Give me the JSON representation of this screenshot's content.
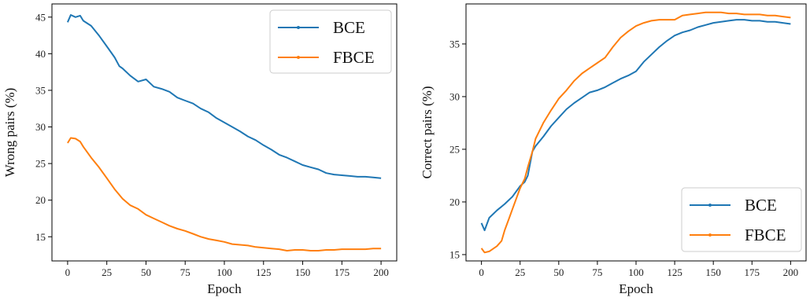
{
  "chart_data": [
    {
      "type": "line",
      "title": "",
      "xlabel": "Epoch",
      "ylabel": "Wrong pairs (%)",
      "xlim": [
        -10,
        210
      ],
      "ylim": [
        11.7,
        46.8
      ],
      "xticks": [
        0,
        25,
        50,
        75,
        100,
        125,
        150,
        175,
        200
      ],
      "yticks": [
        15,
        20,
        25,
        30,
        35,
        40,
        45
      ],
      "legend_position": "top-right",
      "grid": false,
      "series": [
        {
          "name": "BCE",
          "color": "#1f77b4",
          "x": [
            0,
            2,
            5,
            8,
            10,
            15,
            20,
            25,
            30,
            33,
            35,
            40,
            45,
            50,
            55,
            60,
            65,
            70,
            75,
            80,
            85,
            90,
            95,
            100,
            105,
            110,
            115,
            120,
            125,
            130,
            135,
            140,
            145,
            150,
            155,
            160,
            165,
            170,
            175,
            180,
            185,
            190,
            195,
            200
          ],
          "values": [
            44.3,
            45.3,
            45.0,
            45.2,
            44.5,
            43.8,
            42.5,
            41.0,
            39.5,
            38.3,
            38.0,
            37.0,
            36.2,
            36.5,
            35.5,
            35.2,
            34.8,
            34.0,
            33.6,
            33.2,
            32.5,
            32.0,
            31.2,
            30.6,
            30.0,
            29.4,
            28.7,
            28.2,
            27.5,
            26.9,
            26.2,
            25.8,
            25.3,
            24.8,
            24.5,
            24.2,
            23.7,
            23.5,
            23.4,
            23.3,
            23.2,
            23.2,
            23.1,
            23.0
          ]
        },
        {
          "name": "FBCE",
          "color": "#ff7f0e",
          "x": [
            0,
            2,
            5,
            8,
            10,
            15,
            20,
            25,
            30,
            35,
            40,
            45,
            50,
            55,
            60,
            65,
            70,
            75,
            80,
            85,
            90,
            95,
            100,
            105,
            110,
            115,
            120,
            125,
            130,
            135,
            140,
            145,
            150,
            155,
            160,
            165,
            170,
            175,
            180,
            185,
            190,
            195,
            200
          ],
          "values": [
            27.8,
            28.5,
            28.4,
            28.0,
            27.3,
            25.8,
            24.5,
            23.0,
            21.5,
            20.2,
            19.3,
            18.8,
            18.0,
            17.5,
            17.0,
            16.5,
            16.1,
            15.8,
            15.4,
            15.0,
            14.7,
            14.5,
            14.3,
            14.0,
            13.9,
            13.8,
            13.6,
            13.5,
            13.4,
            13.3,
            13.1,
            13.2,
            13.2,
            13.1,
            13.1,
            13.2,
            13.2,
            13.3,
            13.3,
            13.3,
            13.3,
            13.4,
            13.4
          ]
        }
      ]
    },
    {
      "type": "line",
      "title": "",
      "xlabel": "Epoch",
      "ylabel": "Correct pairs (%)",
      "xlim": [
        -10,
        210
      ],
      "ylim": [
        14.4,
        38.8
      ],
      "xticks": [
        0,
        25,
        50,
        75,
        100,
        125,
        150,
        175,
        200
      ],
      "yticks": [
        15,
        20,
        25,
        30,
        35
      ],
      "legend_position": "bottom-right",
      "grid": false,
      "series": [
        {
          "name": "BCE",
          "color": "#1f77b4",
          "x": [
            0,
            2,
            5,
            10,
            15,
            20,
            25,
            28,
            30,
            33,
            35,
            40,
            45,
            50,
            55,
            60,
            65,
            70,
            75,
            80,
            85,
            90,
            95,
            100,
            105,
            110,
            115,
            120,
            125,
            130,
            135,
            140,
            145,
            150,
            155,
            160,
            165,
            170,
            175,
            180,
            185,
            190,
            195,
            200
          ],
          "values": [
            18.0,
            17.3,
            18.5,
            19.2,
            19.8,
            20.5,
            21.5,
            21.9,
            22.5,
            24.8,
            25.3,
            26.2,
            27.2,
            28.0,
            28.8,
            29.4,
            29.9,
            30.4,
            30.6,
            30.9,
            31.3,
            31.7,
            32.0,
            32.4,
            33.3,
            34.0,
            34.7,
            35.3,
            35.8,
            36.1,
            36.3,
            36.6,
            36.8,
            37.0,
            37.1,
            37.2,
            37.3,
            37.3,
            37.2,
            37.2,
            37.1,
            37.1,
            37.0,
            36.9
          ]
        },
        {
          "name": "FBCE",
          "color": "#ff7f0e",
          "x": [
            0,
            2,
            5,
            10,
            13,
            15,
            18,
            20,
            25,
            28,
            30,
            33,
            35,
            40,
            45,
            50,
            55,
            60,
            65,
            70,
            75,
            80,
            85,
            90,
            95,
            100,
            105,
            110,
            115,
            120,
            125,
            130,
            135,
            140,
            145,
            150,
            155,
            160,
            165,
            170,
            175,
            180,
            185,
            190,
            195,
            200
          ],
          "values": [
            15.6,
            15.2,
            15.3,
            15.8,
            16.3,
            17.3,
            18.5,
            19.3,
            21.3,
            22.2,
            23.3,
            24.8,
            26.0,
            27.5,
            28.7,
            29.8,
            30.6,
            31.5,
            32.2,
            32.7,
            33.2,
            33.7,
            34.7,
            35.6,
            36.2,
            36.7,
            37.0,
            37.2,
            37.3,
            37.3,
            37.3,
            37.7,
            37.8,
            37.9,
            38.0,
            38.0,
            38.0,
            37.9,
            37.9,
            37.8,
            37.8,
            37.8,
            37.7,
            37.7,
            37.6,
            37.5
          ]
        }
      ]
    }
  ]
}
